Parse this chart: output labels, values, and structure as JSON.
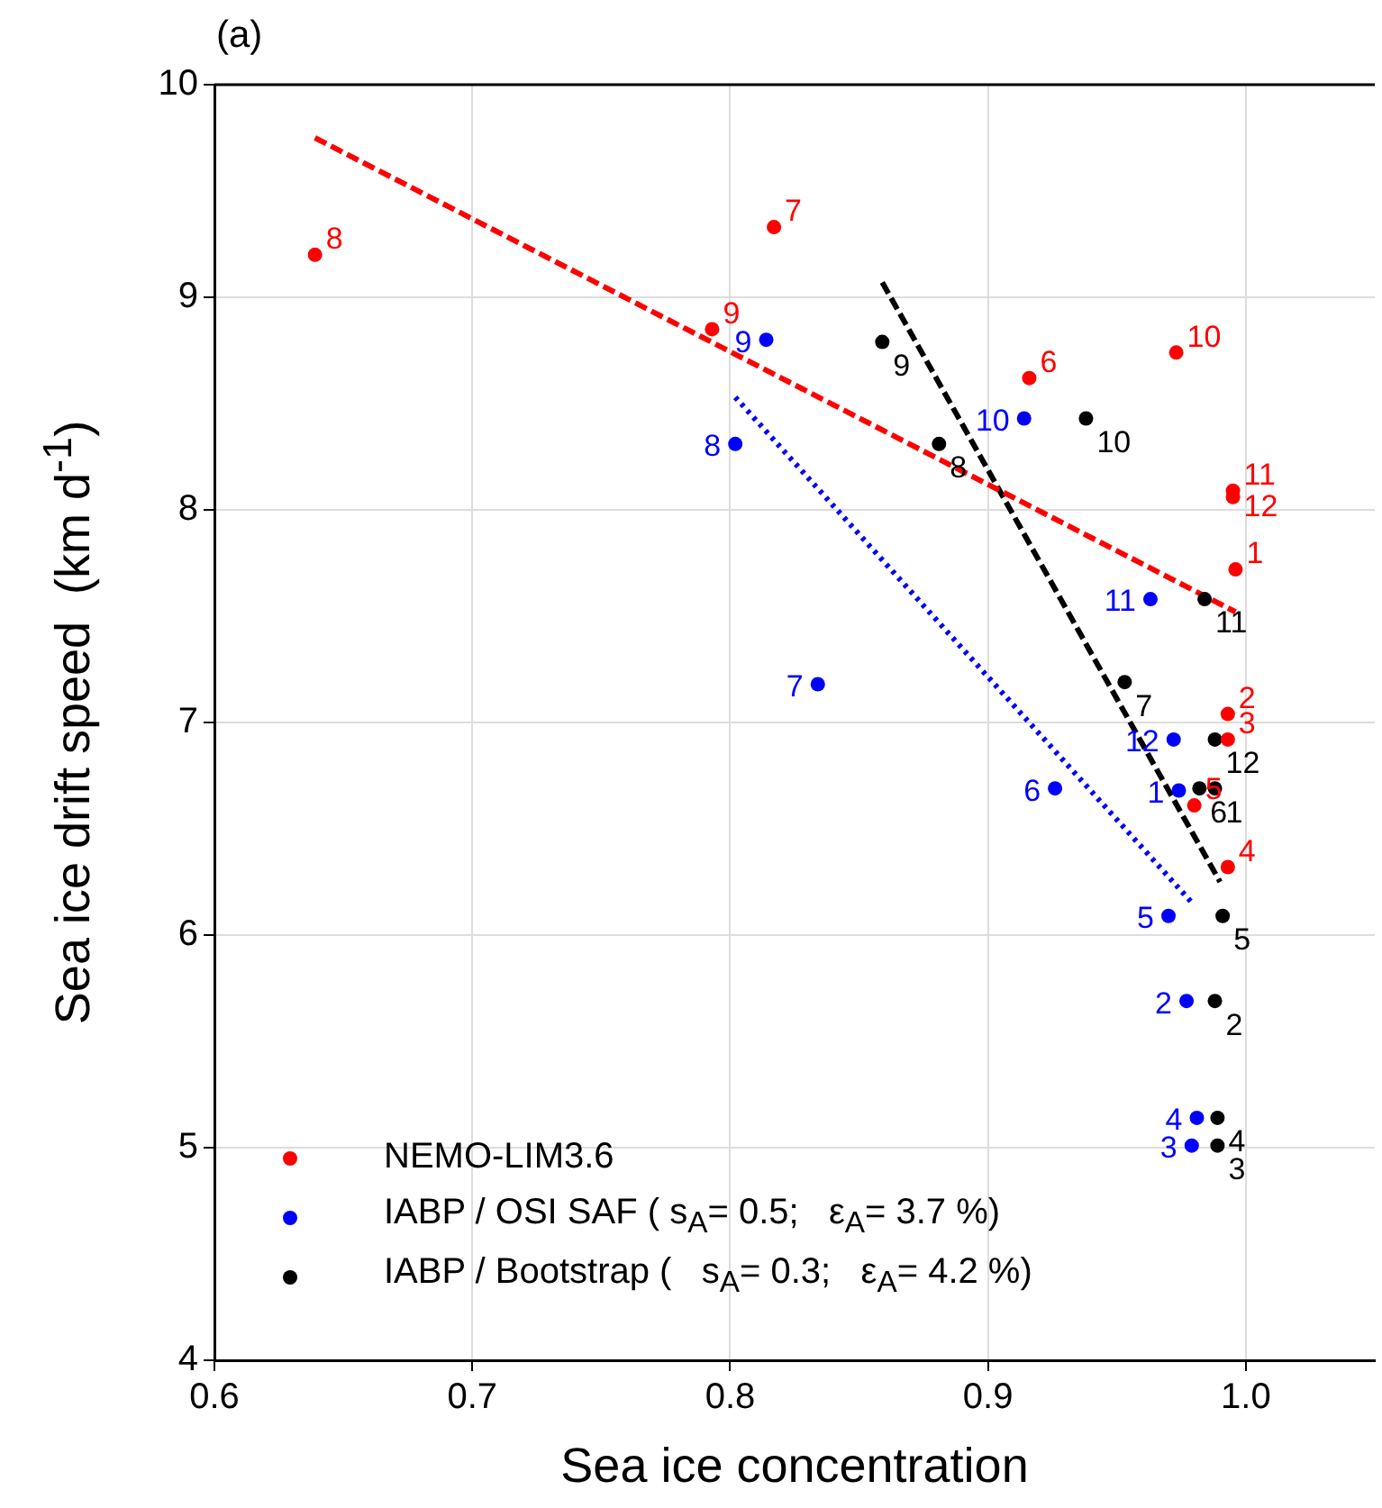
{
  "chart_data": {
    "type": "scatter",
    "title": "(a)",
    "xlabel": "Sea ice concentration",
    "ylabel": "Sea ice drift speed  (km d$^{-1}$)",
    "xlim": [
      0.6,
      1.05
    ],
    "ylim": [
      4,
      10
    ],
    "xticks": [
      0.6,
      0.7,
      0.8,
      0.9,
      {
        "value": 1,
        "label": "1.0"
      }
    ],
    "yticks": [
      4,
      5,
      6,
      7,
      8,
      9,
      10
    ],
    "grid": true,
    "legend": "bottom left",
    "marker": "circle",
    "series": [
      {
        "name": "NEMO-LIM3.6",
        "color": "#ff0000",
        "x": [
          0.996,
          0.993,
          0.993,
          0.993,
          0.98,
          0.916,
          0.817,
          0.639,
          0.793,
          0.973,
          0.995,
          0.995
        ],
        "values": [
          7.72,
          7.04,
          6.92,
          6.32,
          6.61,
          8.62,
          9.33,
          9.2,
          8.85,
          8.74,
          8.09,
          8.06
        ]
      },
      {
        "name": "IABP / OSI SAF ( s$_{A}$= 0.5;   ε$_{A}$= 3.7 %)",
        "color": "#0000ff",
        "x": [
          0.974,
          0.977,
          0.979,
          0.981,
          0.97,
          0.926,
          0.834,
          0.802,
          0.814,
          0.914,
          0.963,
          0.972
        ],
        "values": [
          6.68,
          5.69,
          5.01,
          5.14,
          6.09,
          6.69,
          7.18,
          8.31,
          8.8,
          8.43,
          7.58,
          6.92
        ]
      },
      {
        "name": "IABP / Bootstrap (   s$_{A}$= 0.3;   ε$_{A}$= 4.2 %)",
        "color": "#000000",
        "x": [
          0.988,
          0.988,
          0.989,
          0.989,
          0.991,
          0.982,
          0.953,
          0.881,
          0.859,
          0.938,
          0.984,
          0.988
        ],
        "values": [
          6.69,
          5.69,
          5.01,
          5.14,
          6.09,
          6.69,
          7.19,
          8.31,
          8.79,
          8.43,
          7.58,
          6.92
        ]
      },
      {
        "type": "line",
        "color": "#ff0000",
        "line_style": "dashed",
        "marker": "none",
        "x": [
          0.639,
          0.996
        ],
        "values": [
          9.75,
          7.52
        ]
      },
      {
        "type": "line",
        "color": "#0000ff",
        "line_style": "dotted",
        "marker": "none",
        "x": [
          0.802,
          0.98
        ],
        "values": [
          8.53,
          6.14
        ]
      },
      {
        "type": "line",
        "color": "#000000",
        "line_style": "dashed",
        "marker": "none",
        "x": [
          0.859,
          0.99
        ],
        "values": [
          9.07,
          6.25
        ]
      }
    ],
    "annotations": [
      {
        "text": "1",
        "x": 0.996,
        "y": 7.72
      },
      {
        "text": "2",
        "x": 0.993,
        "y": 7.04
      },
      {
        "text": "3",
        "x": 0.993,
        "y": 6.92
      },
      {
        "text": "4",
        "x": 0.993,
        "y": 6.32
      },
      {
        "text": "5",
        "x": 0.98,
        "y": 6.61
      },
      {
        "text": "6",
        "x": 0.916,
        "y": 8.62
      },
      {
        "text": "7",
        "x": 0.817,
        "y": 9.33
      },
      {
        "text": "8",
        "x": 0.639,
        "y": 9.2
      },
      {
        "text": "9",
        "x": 0.793,
        "y": 8.85
      },
      {
        "text": "10",
        "x": 0.973,
        "y": 8.74
      },
      {
        "text": "11",
        "x": 0.995,
        "y": 8.09
      },
      {
        "text": "12",
        "x": 0.995,
        "y": 8.06
      },
      {
        "text": "1",
        "x": 0.974,
        "y": 6.68
      },
      {
        "text": "2",
        "x": 0.977,
        "y": 5.69
      },
      {
        "text": "3",
        "x": 0.979,
        "y": 5.01
      },
      {
        "text": "4",
        "x": 0.981,
        "y": 5.14
      },
      {
        "text": "5",
        "x": 0.97,
        "y": 6.09
      },
      {
        "text": "6",
        "x": 0.926,
        "y": 6.69
      },
      {
        "text": "7",
        "x": 0.834,
        "y": 7.18
      },
      {
        "text": "8",
        "x": 0.802,
        "y": 8.31
      },
      {
        "text": "9",
        "x": 0.814,
        "y": 8.8
      },
      {
        "text": "10",
        "x": 0.914,
        "y": 8.43
      },
      {
        "text": "11",
        "x": 0.963,
        "y": 7.58
      },
      {
        "text": "12",
        "x": 0.972,
        "y": 6.92
      },
      {
        "text": "1",
        "x": 0.988,
        "y": 6.69
      },
      {
        "text": "2",
        "x": 0.988,
        "y": 5.69
      },
      {
        "text": "3",
        "x": 0.989,
        "y": 5.01
      },
      {
        "text": "4",
        "x": 0.989,
        "y": 5.14
      },
      {
        "text": "5",
        "x": 0.991,
        "y": 6.09
      },
      {
        "text": "6",
        "x": 0.982,
        "y": 6.69
      },
      {
        "text": "7",
        "x": 0.953,
        "y": 7.19
      },
      {
        "text": "8",
        "x": 0.881,
        "y": 8.31
      },
      {
        "text": "9",
        "x": 0.859,
        "y": 8.79
      },
      {
        "text": "10",
        "x": 0.938,
        "y": 8.43
      },
      {
        "text": "11",
        "x": 0.984,
        "y": 7.58
      },
      {
        "text": "12",
        "x": 0.988,
        "y": 6.92
      }
    ]
  }
}
